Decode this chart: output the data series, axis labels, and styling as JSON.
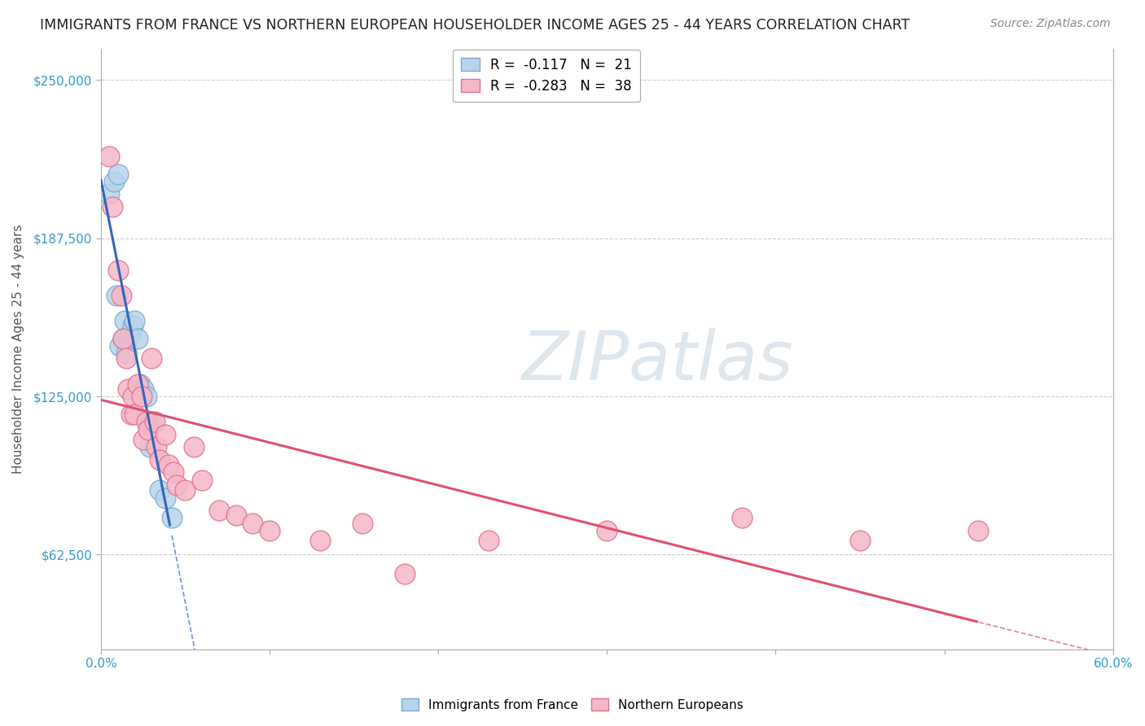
{
  "title": "IMMIGRANTS FROM FRANCE VS NORTHERN EUROPEAN HOUSEHOLDER INCOME AGES 25 - 44 YEARS CORRELATION CHART",
  "source": "Source: ZipAtlas.com",
  "ylabel": "Householder Income Ages 25 - 44 years",
  "xlim": [
    0.0,
    0.6
  ],
  "ylim": [
    25000,
    262500
  ],
  "yticks": [
    62500,
    125000,
    187500,
    250000
  ],
  "ytick_labels": [
    "$62,500",
    "$125,000",
    "$187,500",
    "$250,000"
  ],
  "background_color": "#ffffff",
  "grid_color": "#cccccc",
  "watermark_text": "ZIPatlas",
  "series": [
    {
      "name": "Immigrants from France",
      "R": -0.117,
      "N": 21,
      "color": "#b8d4ec",
      "edge_color": "#7aaad0",
      "x": [
        0.005,
        0.008,
        0.009,
        0.01,
        0.011,
        0.013,
        0.014,
        0.015,
        0.016,
        0.018,
        0.019,
        0.02,
        0.022,
        0.023,
        0.025,
        0.027,
        0.029,
        0.03,
        0.035,
        0.038,
        0.042
      ],
      "y": [
        205000,
        210000,
        165000,
        213000,
        145000,
        148000,
        155000,
        142000,
        148000,
        150000,
        153000,
        155000,
        148000,
        130000,
        128000,
        125000,
        105000,
        115000,
        88000,
        85000,
        77000
      ],
      "line_color": "#3366bb",
      "line_width": 2.2
    },
    {
      "name": "Northern Europeans",
      "R": -0.283,
      "N": 38,
      "color": "#f5b8c8",
      "edge_color": "#e07090",
      "x": [
        0.005,
        0.007,
        0.01,
        0.012,
        0.013,
        0.015,
        0.016,
        0.018,
        0.019,
        0.02,
        0.022,
        0.024,
        0.025,
        0.027,
        0.028,
        0.03,
        0.032,
        0.033,
        0.035,
        0.038,
        0.04,
        0.043,
        0.045,
        0.05,
        0.055,
        0.06,
        0.07,
        0.08,
        0.09,
        0.1,
        0.13,
        0.155,
        0.18,
        0.23,
        0.3,
        0.38,
        0.45,
        0.52
      ],
      "y": [
        220000,
        200000,
        175000,
        165000,
        148000,
        140000,
        128000,
        118000,
        125000,
        118000,
        130000,
        125000,
        108000,
        115000,
        112000,
        140000,
        115000,
        105000,
        100000,
        110000,
        98000,
        95000,
        90000,
        88000,
        105000,
        92000,
        80000,
        78000,
        75000,
        72000,
        68000,
        75000,
        55000,
        68000,
        72000,
        77000,
        68000,
        72000
      ],
      "line_color": "#e05070",
      "line_width": 2.2
    }
  ],
  "title_fontsize": 12.5,
  "axis_label_fontsize": 11,
  "tick_fontsize": 11,
  "source_fontsize": 10,
  "marker_size": 320
}
